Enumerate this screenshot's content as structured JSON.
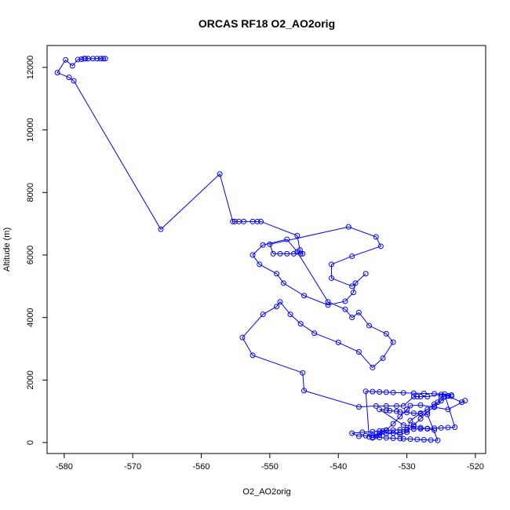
{
  "chart_data": {
    "type": "scatter",
    "title": "ORCAS RF18 O2_AO2orig",
    "xlabel": "O2_AO2orig",
    "ylabel": "Altitude (m)",
    "xlim": [
      -582.5,
      -518.5
    ],
    "ylim": [
      -350,
      12700
    ],
    "xticks": [
      -580,
      -570,
      -560,
      -550,
      -540,
      -530,
      -520
    ],
    "yticks": [
      0,
      2000,
      4000,
      6000,
      8000,
      10000,
      12000
    ],
    "xtick_labels": [
      "-580",
      "-570",
      "-560",
      "-550",
      "-540",
      "-530",
      "-520"
    ],
    "ytick_labels": [
      "0",
      "2000",
      "4000",
      "6000",
      "8000",
      "10000",
      "12000"
    ],
    "grid": false,
    "legend": "none",
    "series_color": "#0000ff",
    "x": [
      -574.0,
      -574.3,
      -574.7,
      -575.2,
      -575.8,
      -576.5,
      -576.9,
      -577.1,
      -577.5,
      -578.0,
      -578.8,
      -579.8,
      -581.0,
      -579.3,
      -578.6,
      -565.9,
      -557.3,
      -555.4,
      -555.1,
      -554.5,
      -553.8,
      -552.5,
      -551.8,
      -551.3,
      -546.0,
      -545.6,
      -545.2,
      -545.5,
      -546.5,
      -547.5,
      -548.5,
      -549.5,
      -550.0,
      -538.5,
      -534.5,
      -533.8,
      -538.0,
      -541.0,
      -541.0,
      -538.0,
      -536.0,
      -537.5,
      -537.8,
      -539.0,
      -541.5,
      -545.0,
      -548.0,
      -549.0,
      -551.5,
      -552.5,
      -551.0,
      -547.5,
      -546.0,
      -541.5,
      -539.0,
      -538.0,
      -537.0,
      -535.5,
      -533.0,
      -532.0,
      -533.5,
      -535.0,
      -537.0,
      -540.0,
      -543.5,
      -545.5,
      -547.0,
      -548.5,
      -549.0,
      -551.0,
      -554.0,
      -552.5,
      -545.2,
      -545.0,
      -537.0,
      -534.5,
      -533.0,
      -531.5,
      -530.5,
      -529.0,
      -528.5,
      -528.0,
      -527.0,
      -525.0,
      -523.5,
      -524.0,
      -522.0,
      -521.5,
      -524.0,
      -526.0,
      -528.0,
      -529.5,
      -530.0,
      -531.0,
      -532.0,
      -533.0,
      -534.5,
      -535.0,
      -534.0,
      -533.5,
      -531.0,
      -530.0,
      -529.5,
      -528.0,
      -527.0,
      -526.0,
      -525.5,
      -525.0,
      -524.5,
      -524.0,
      -523.5,
      -525.0,
      -526.0,
      -527.0,
      -528.0,
      -529.0,
      -530.0,
      -531.0,
      -532.0,
      -533.0,
      -534.0,
      -535.0,
      -536.0,
      -537.0,
      -538.0,
      -536.5,
      -535.0,
      -534.0,
      -533.0,
      -532.0,
      -531.0,
      -530.0,
      -529.0,
      -528.0,
      -527.0,
      -526.0,
      -525.0,
      -524.0,
      -523.0,
      -524.5,
      -526.0,
      -527.5,
      -529.0,
      -530.5,
      -532.0,
      -533.0,
      -534.0,
      -535.0,
      -536.0,
      -535.5,
      -535.0,
      -534.0,
      -533.0,
      -532.0,
      -531.0,
      -530.5,
      -529.5,
      -528.5,
      -527.5,
      -526.5,
      -525.5,
      -527.0,
      -528.0,
      -529.0,
      -530.0,
      -531.0,
      -531.5,
      -532.5,
      -533.0,
      -534.0,
      -530.5,
      -529.0,
      -528.0,
      -527.0,
      -526.0
    ],
    "y": [
      12280,
      12280,
      12280,
      12280,
      12280,
      12280,
      12280,
      12280,
      12260,
      12250,
      12050,
      12240,
      11830,
      11680,
      11570,
      6820,
      8590,
      7070,
      7070,
      7070,
      7070,
      7070,
      7070,
      7070,
      6620,
      6160,
      6040,
      6040,
      6040,
      6040,
      6040,
      6040,
      6340,
      6900,
      6580,
      6280,
      5960,
      5700,
      5260,
      5000,
      5400,
      5100,
      4800,
      4520,
      4400,
      4700,
      5100,
      5400,
      5700,
      6000,
      6320,
      6500,
      6100,
      4500,
      4260,
      4000,
      4160,
      3740,
      3480,
      3210,
      2700,
      2400,
      2900,
      3200,
      3500,
      3800,
      4100,
      4500,
      4350,
      4100,
      3360,
      2790,
      2230,
      1660,
      1140,
      1170,
      1170,
      1170,
      1170,
      1470,
      1470,
      1470,
      1470,
      1540,
      1520,
      1490,
      1290,
      1340,
      1060,
      1130,
      1200,
      1180,
      1060,
      830,
      600,
      400,
      200,
      150,
      300,
      370,
      260,
      330,
      700,
      940,
      1060,
      1230,
      1290,
      1450,
      1480,
      1490,
      1480,
      1340,
      1150,
      980,
      760,
      560,
      400,
      320,
      300,
      280,
      260,
      240,
      220,
      200,
      300,
      330,
      350,
      370,
      390,
      400,
      410,
      420,
      430,
      440,
      450,
      460,
      470,
      480,
      490,
      1550,
      1560,
      1570,
      1580,
      1590,
      1600,
      1610,
      1620,
      1630,
      1640,
      180,
      170,
      160,
      150,
      140,
      130,
      120,
      110,
      100,
      90,
      80,
      70,
      900,
      920,
      940,
      960,
      980,
      1000,
      1020,
      1040,
      1060,
      560,
      520,
      480,
      440,
      400
    ]
  }
}
